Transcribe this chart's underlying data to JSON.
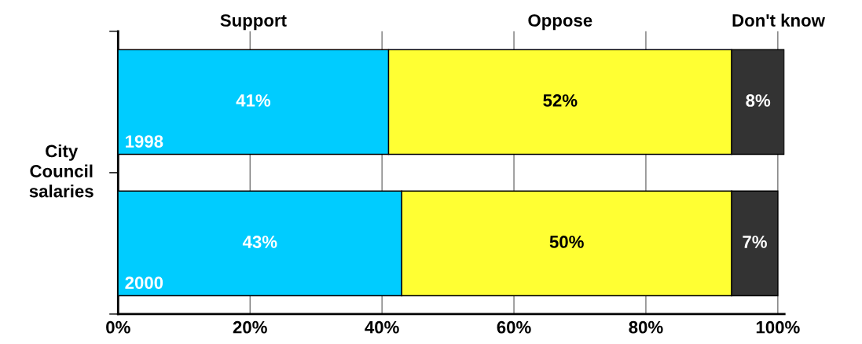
{
  "chart_data": {
    "type": "bar",
    "orientation": "horizontal",
    "stacked": true,
    "ylabel": "City Council salaries",
    "categories": [
      "1998",
      "2000"
    ],
    "series": [
      {
        "name": "Support",
        "color": "#00ccff",
        "values": [
          41,
          43
        ],
        "value_labels": [
          "41%",
          "43%"
        ]
      },
      {
        "name": "Oppose",
        "color": "#ffff33",
        "values": [
          52,
          50
        ],
        "value_labels": [
          "52%",
          "50%"
        ]
      },
      {
        "name": "Don't know",
        "color": "#333333",
        "values": [
          8,
          7
        ],
        "value_labels": [
          "8%",
          "7%"
        ]
      }
    ],
    "xlim": [
      0,
      101
    ],
    "xticks": [
      {
        "value": 0,
        "label": "0%"
      },
      {
        "value": 20,
        "label": "20%"
      },
      {
        "value": 40,
        "label": "40%"
      },
      {
        "value": 60,
        "label": "60%"
      },
      {
        "value": 80,
        "label": "80%"
      },
      {
        "value": 100,
        "label": "100%"
      }
    ],
    "grid": "x"
  }
}
